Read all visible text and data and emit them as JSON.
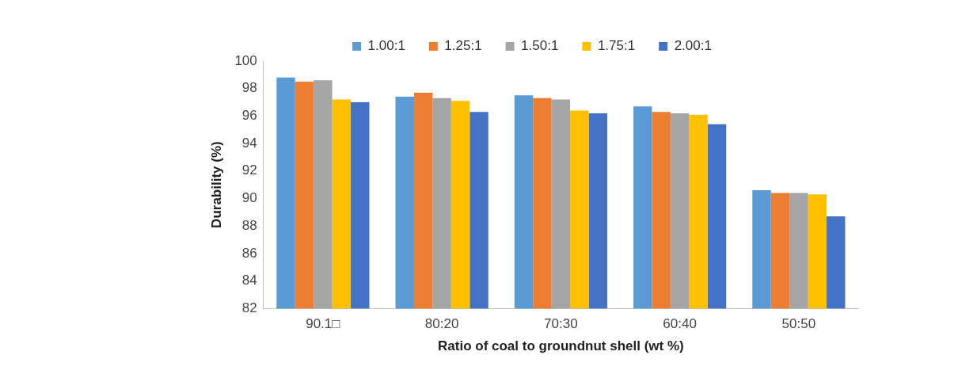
{
  "chart_data": {
    "type": "bar",
    "xlabel": "Ratio of coal to groundnut shell (wt %)",
    "ylabel": "Durability (%)",
    "categories": [
      "90.1□",
      "80:20",
      "70:30",
      "60:40",
      "50:50"
    ],
    "series": [
      {
        "name": "1.00:1",
        "color": "#5b9bd5",
        "values": [
          98.8,
          97.4,
          97.5,
          96.7,
          90.6
        ]
      },
      {
        "name": "1.25:1",
        "color": "#ed7d31",
        "values": [
          98.5,
          97.7,
          97.3,
          96.3,
          90.4
        ]
      },
      {
        "name": "1.50:1",
        "color": "#a5a5a5",
        "values": [
          98.6,
          97.3,
          97.2,
          96.2,
          90.4
        ]
      },
      {
        "name": "1.75:1",
        "color": "#ffc000",
        "values": [
          97.2,
          97.1,
          96.4,
          96.1,
          90.3
        ]
      },
      {
        "name": "2.00:1",
        "color": "#4472c4",
        "values": [
          97.0,
          96.3,
          96.2,
          95.4,
          88.7
        ]
      }
    ],
    "ylim": [
      82,
      100
    ],
    "yticks": [
      82,
      84,
      86,
      88,
      90,
      92,
      94,
      96,
      98,
      100
    ],
    "grid": false,
    "legend": "top"
  }
}
